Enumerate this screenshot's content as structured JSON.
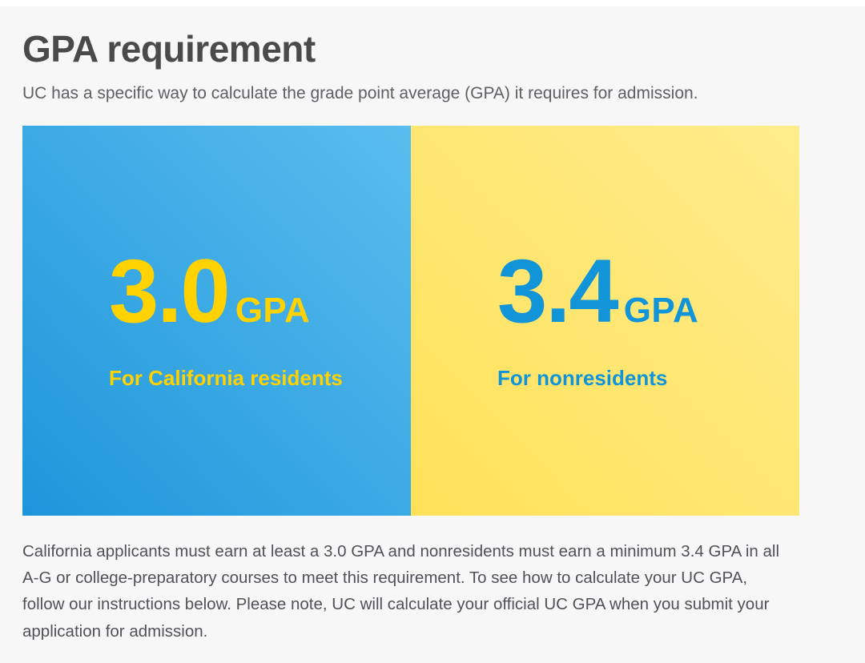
{
  "page": {
    "title": "GPA requirement",
    "subtitle": "UC has a specific way to calculate the grade point average (GPA) it requires for admission.",
    "body_paragraph": "California applicants must earn at least a 3.0 GPA and nonresidents must earn a minimum 3.4 GPA in all A-G or college-preparatory courses to meet this requirement. To see how to calculate your UC GPA, follow our instructions below. Please note, UC will calculate your official UC GPA when you submit your application for admission."
  },
  "cards": [
    {
      "value": "3.0",
      "unit": "GPA",
      "label": "For California residents",
      "gradient_from": "#1e96db",
      "gradient_to": "#5abdee",
      "text_color": "#ffd200"
    },
    {
      "value": "3.4",
      "unit": "GPA",
      "label": "For nonresidents",
      "gradient_from": "#ffe159",
      "gradient_to": "#ffec8c",
      "text_color": "#1295d8"
    }
  ],
  "colors": {
    "page_background": "#f7f7f8",
    "top_strip": "#ffffff",
    "heading_text": "#4a4a4a",
    "body_text": "#515257",
    "uc_blue": "#1295d8",
    "uc_gold": "#ffd200"
  }
}
